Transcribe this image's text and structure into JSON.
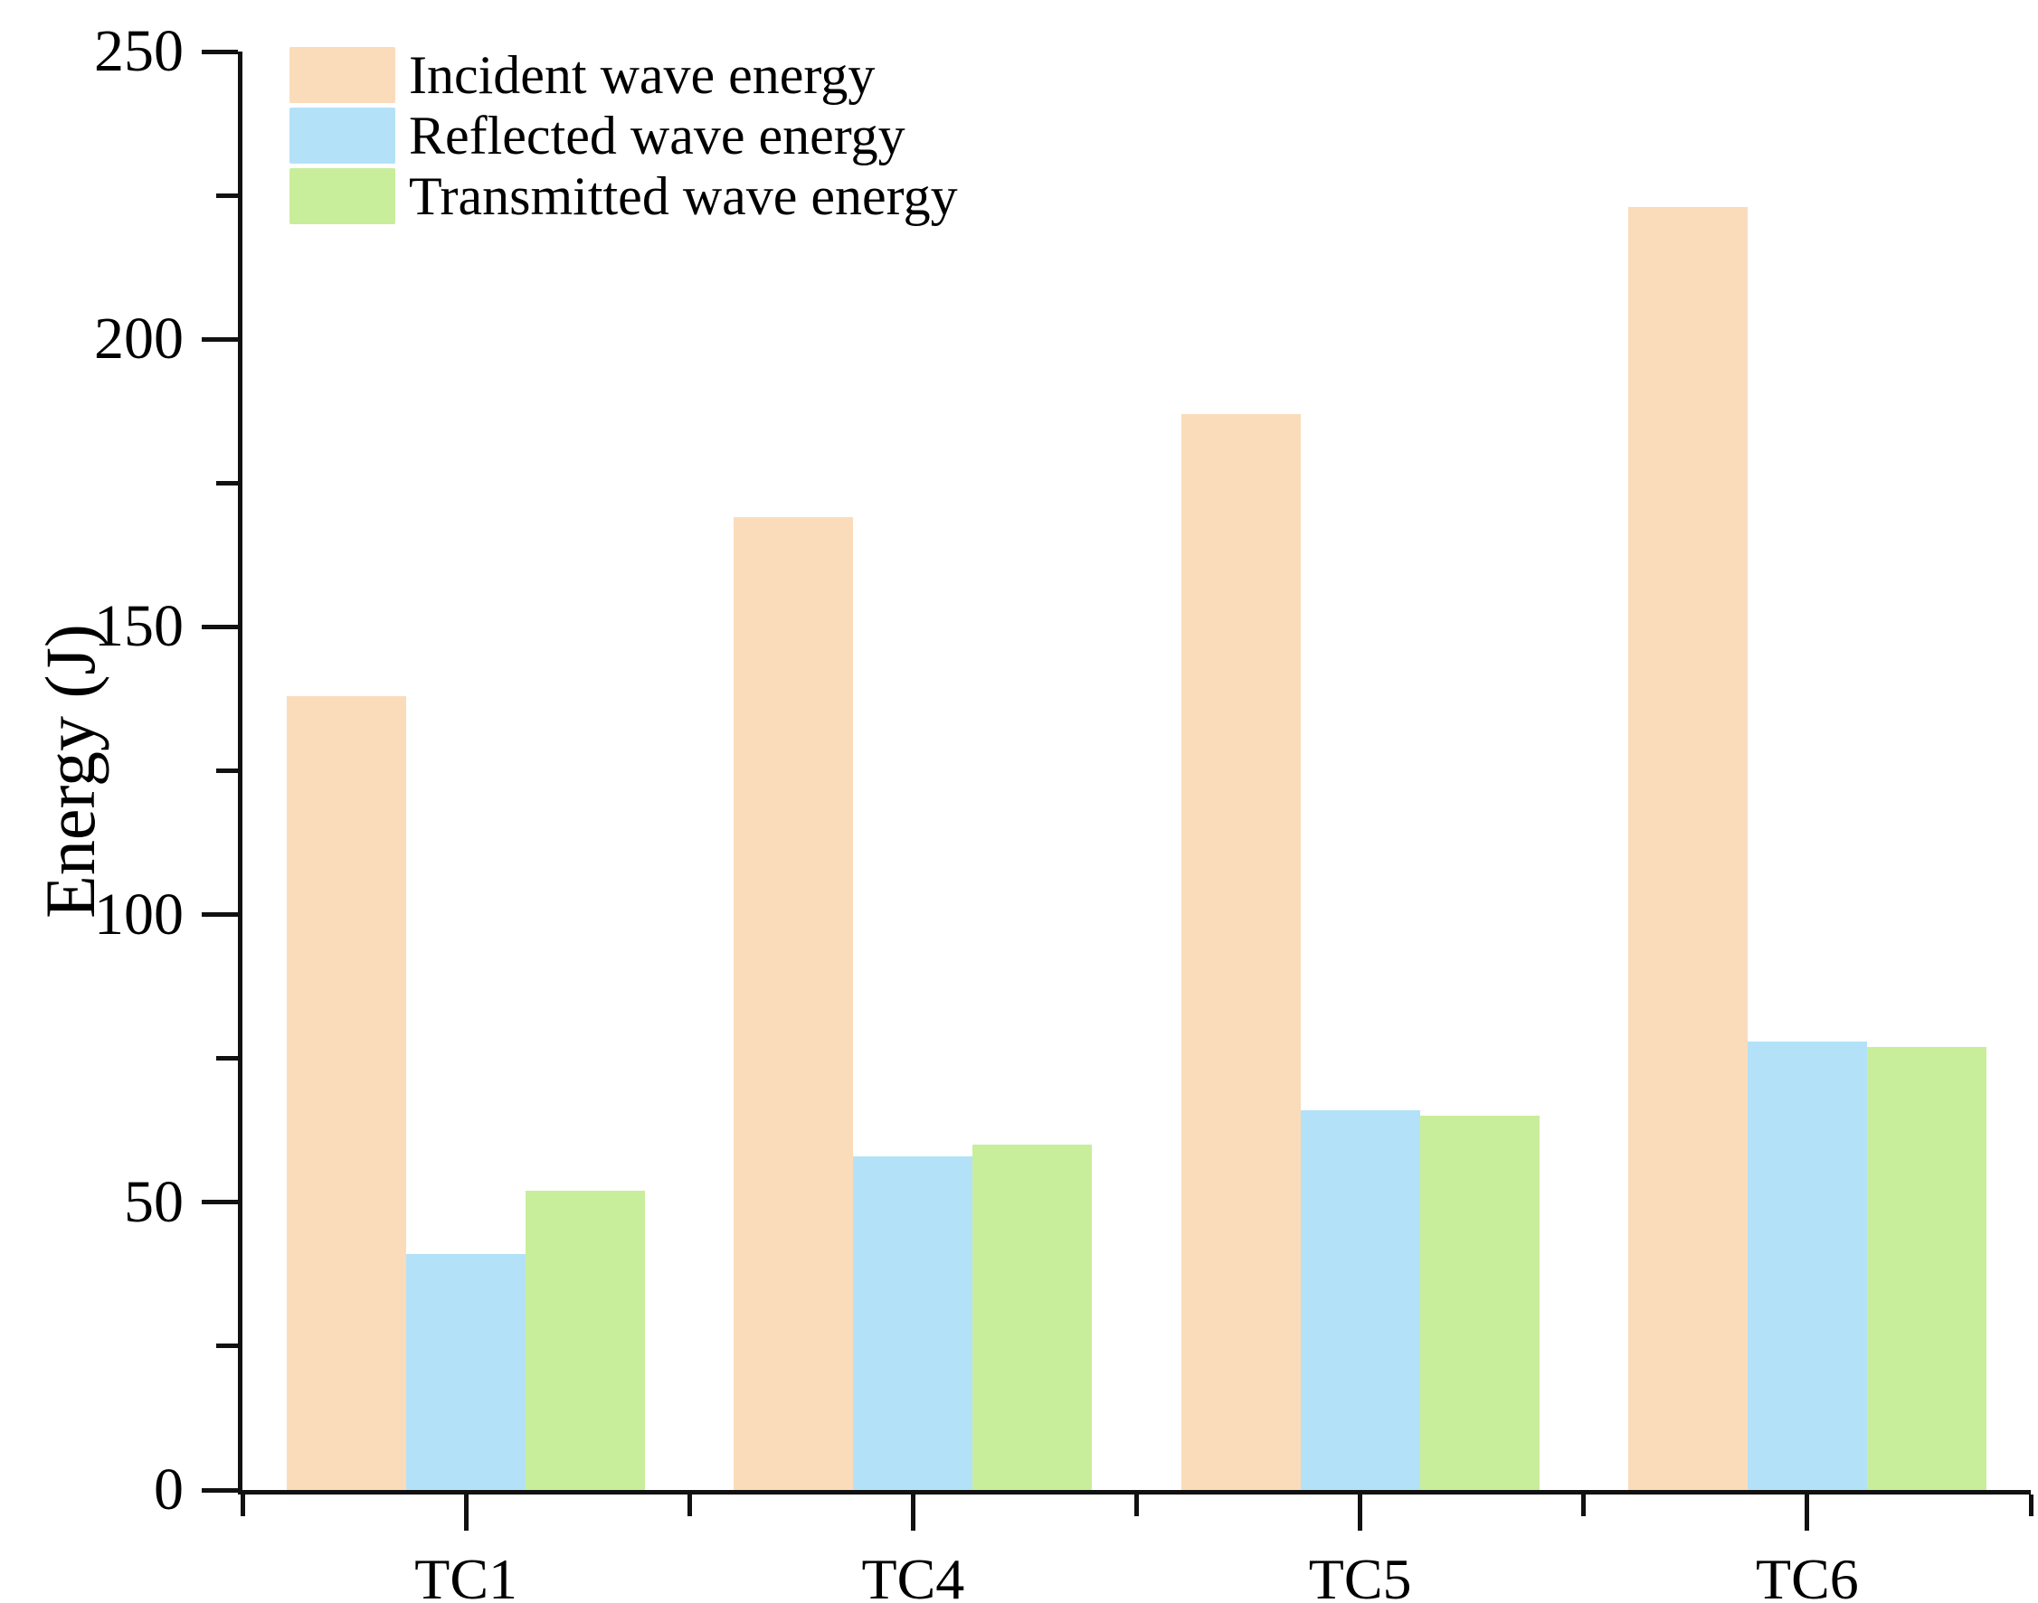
{
  "chart_data": {
    "type": "bar",
    "title": "",
    "categories": [
      "TC1",
      "TC4",
      "TC5",
      "TC6"
    ],
    "series": [
      {
        "name": "Incident wave energy",
        "color": "#FADCBB",
        "values": [
          138,
          169,
          187,
          223
        ]
      },
      {
        "name": "Reflected wave energy",
        "color": "#B3E2F8",
        "values": [
          41,
          58,
          66,
          78
        ]
      },
      {
        "name": "Transmitted wave energy",
        "color": "#C9EE9B",
        "values": [
          52,
          60,
          65,
          77
        ]
      }
    ],
    "xlabel": "",
    "ylabel": "Energy (J)",
    "ylim": [
      0,
      250
    ],
    "y_ticks": [
      "0",
      "50",
      "100",
      "150",
      "200",
      "250"
    ],
    "y_minor_step": 25,
    "legend_position": "top-left",
    "grid": false,
    "axis_color": "#111111"
  }
}
